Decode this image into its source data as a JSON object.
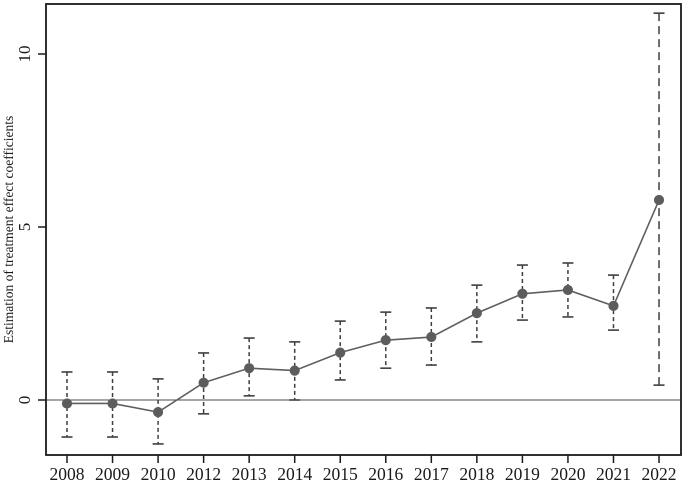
{
  "colors": {
    "series": "#5f5f5f",
    "marker": "#5c5c5c",
    "error_bar": "#3f3f3f",
    "axis": "#1a1a1a",
    "zero_line": "#4d4d4d",
    "background": "#ffffff"
  },
  "chart_data": {
    "type": "line",
    "title": "",
    "xlabel": "",
    "ylabel": "Estimation of treatment effect coefficients",
    "legend": null,
    "grid": false,
    "zero_line": true,
    "ylim": [
      -1.6,
      11.45
    ],
    "yticks": [
      0,
      5,
      10
    ],
    "ytick_labels": [
      "0",
      "5",
      "10"
    ],
    "categories": [
      "2008",
      "2009",
      "2010",
      "2012",
      "2013",
      "2014",
      "2015",
      "2016",
      "2017",
      "2018",
      "2019",
      "2020",
      "2021",
      "2022"
    ],
    "series": [
      {
        "name": "treatment effect coefficient",
        "values": [
          -0.1,
          -0.1,
          -0.35,
          0.5,
          0.92,
          0.85,
          1.37,
          1.73,
          1.82,
          2.51,
          3.07,
          3.18,
          2.72,
          5.78
        ]
      }
    ],
    "error_bars": {
      "low": [
        -1.07,
        -1.07,
        -1.27,
        -0.4,
        0.12,
        0.0,
        0.58,
        0.92,
        1.01,
        1.68,
        2.31,
        2.4,
        2.02,
        0.43
      ],
      "high": [
        0.81,
        0.81,
        0.61,
        1.36,
        1.79,
        1.68,
        2.28,
        2.54,
        2.66,
        3.32,
        3.9,
        3.96,
        3.61,
        11.18
      ],
      "dash": [
        "short",
        "short",
        "short",
        "short",
        "short",
        "short",
        "short",
        "short",
        "short",
        "short",
        "short",
        "short",
        "short",
        "long"
      ]
    }
  }
}
